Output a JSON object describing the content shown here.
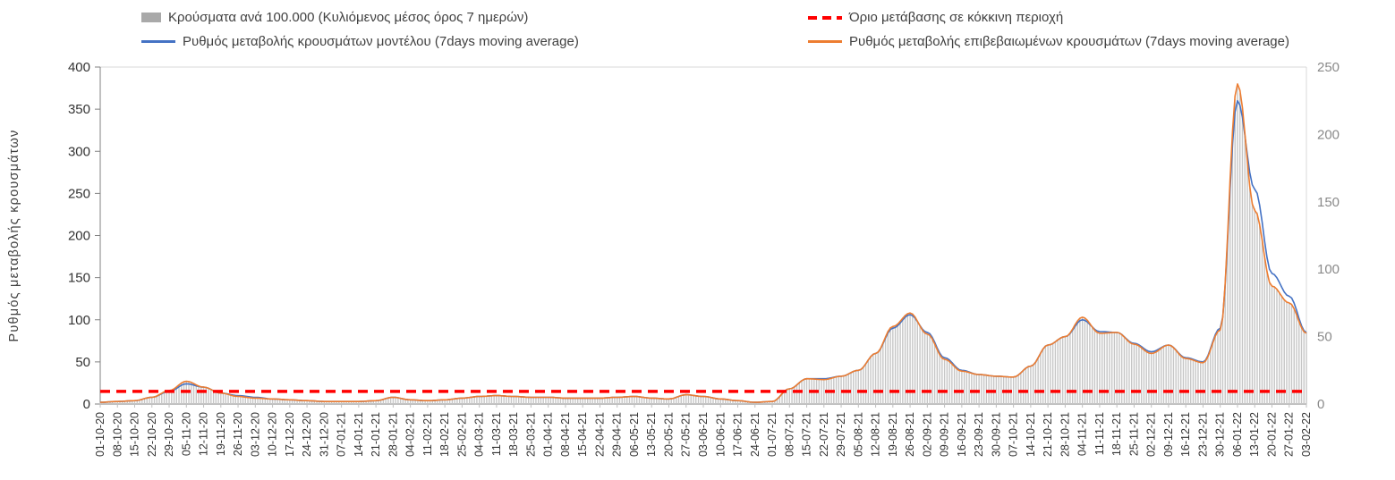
{
  "chart_data": {
    "type": "combo-bar-line",
    "title": "",
    "x_labels": [
      "01-10-20",
      "08-10-20",
      "15-10-20",
      "22-10-20",
      "29-10-20",
      "05-11-20",
      "12-11-20",
      "19-11-20",
      "26-11-20",
      "03-12-20",
      "10-12-20",
      "17-12-20",
      "24-12-20",
      "31-12-20",
      "07-01-21",
      "14-01-21",
      "21-01-21",
      "28-01-21",
      "04-02-21",
      "11-02-21",
      "18-02-21",
      "25-02-21",
      "04-03-21",
      "11-03-21",
      "18-03-21",
      "25-03-21",
      "01-04-21",
      "08-04-21",
      "15-04-21",
      "22-04-21",
      "29-04-21",
      "06-05-21",
      "13-05-21",
      "20-05-21",
      "27-05-21",
      "03-06-21",
      "10-06-21",
      "17-06-21",
      "24-06-21",
      "01-07-21",
      "08-07-21",
      "15-07-21",
      "22-07-21",
      "29-07-21",
      "05-08-21",
      "12-08-21",
      "19-08-21",
      "26-08-21",
      "02-09-21",
      "09-09-21",
      "16-09-21",
      "23-09-21",
      "30-09-21",
      "07-10-21",
      "14-10-21",
      "21-10-21",
      "28-10-21",
      "04-11-21",
      "11-11-21",
      "18-11-21",
      "25-11-21",
      "02-12-21",
      "09-12-21",
      "16-12-21",
      "23-12-21",
      "30-12-21",
      "06-01-22",
      "13-01-22",
      "20-01-22",
      "27-01-22",
      "03-02-22"
    ],
    "left_axis": {
      "label": "Ρυθμός μεταβολής κρουσμάτων",
      "min": 0,
      "max": 400,
      "step": 50,
      "ticks": [
        0,
        50,
        100,
        150,
        200,
        250,
        300,
        350,
        400
      ]
    },
    "right_axis": {
      "label": "",
      "min": 0,
      "max": 250,
      "step": 50,
      "ticks": [
        0,
        50,
        100,
        150,
        200,
        250
      ]
    },
    "grid": "off",
    "legend_position": "top",
    "series": [
      {
        "name": "Κρούσματα ανά 100.000 (Κυλιόμενος μέσος όρος 7 ημερών)",
        "type": "bar",
        "axis": "right",
        "color": "#c6c6c6",
        "values": [
          1,
          2,
          3,
          5,
          10,
          17,
          13,
          8,
          6,
          4,
          4,
          3,
          3,
          2,
          2,
          2,
          3,
          5,
          3,
          3,
          3,
          4,
          6,
          6,
          6,
          5,
          5,
          4,
          4,
          4,
          5,
          6,
          4,
          4,
          7,
          6,
          4,
          3,
          1,
          2,
          11,
          19,
          18,
          21,
          25,
          38,
          58,
          68,
          52,
          33,
          24,
          22,
          21,
          20,
          28,
          44,
          50,
          64,
          53,
          53,
          44,
          38,
          44,
          34,
          31,
          55,
          235,
          145,
          88,
          75,
          53
        ]
      },
      {
        "name": "Ρυθμός μεταβολής κρουσμάτων μοντέλου (7days moving average)",
        "type": "line",
        "axis": "left",
        "color": "#4472c4",
        "values": [
          2,
          3,
          4,
          8,
          15,
          24,
          20,
          13,
          10,
          8,
          6,
          5,
          4,
          3,
          3,
          3,
          4,
          8,
          5,
          4,
          5,
          7,
          9,
          10,
          9,
          8,
          8,
          7,
          7,
          7,
          8,
          9,
          7,
          6,
          11,
          9,
          6,
          4,
          2,
          3,
          18,
          30,
          30,
          33,
          40,
          60,
          90,
          106,
          85,
          55,
          40,
          35,
          33,
          32,
          45,
          70,
          80,
          100,
          86,
          85,
          72,
          62,
          70,
          55,
          50,
          90,
          360,
          255,
          155,
          128,
          85
        ]
      },
      {
        "name": "Ρυθμός μεταβολής επιβεβαιωμένων κρουσμάτων (7days moving average)",
        "type": "line",
        "axis": "left",
        "color": "#ed7d31",
        "values": [
          2,
          3,
          4,
          8,
          16,
          27,
          20,
          13,
          9,
          7,
          6,
          5,
          4,
          3,
          3,
          3,
          4,
          8,
          5,
          4,
          5,
          7,
          9,
          10,
          9,
          8,
          8,
          7,
          7,
          7,
          8,
          9,
          7,
          6,
          11,
          9,
          6,
          4,
          2,
          3,
          18,
          30,
          29,
          33,
          40,
          60,
          92,
          108,
          83,
          53,
          39,
          35,
          33,
          32,
          45,
          70,
          80,
          103,
          84,
          85,
          71,
          60,
          70,
          54,
          49,
          88,
          380,
          230,
          140,
          120,
          84
        ]
      },
      {
        "name": "Όριο μετάβασης σε κόκκινη περιοχή",
        "type": "threshold",
        "axis": "left",
        "color": "#ff0000",
        "value": 15
      }
    ]
  }
}
